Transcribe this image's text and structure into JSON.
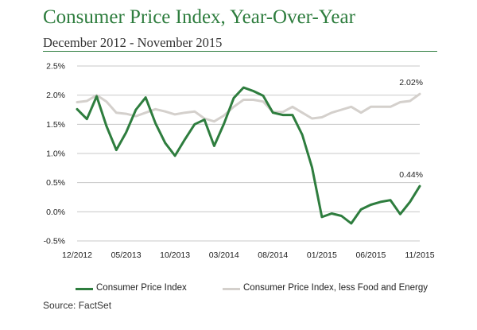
{
  "header": {
    "title": "Consumer Price Index, Year-Over-Year",
    "subtitle": "December 2012 - November 2015"
  },
  "footer": {
    "source": "Source: FactSet"
  },
  "colors": {
    "cpi": "#2e7d3e",
    "core": "#d4d0cc",
    "title": "#2e7d3e"
  },
  "chart_data": {
    "type": "line",
    "x": [
      "12/2012",
      "01/2013",
      "02/2013",
      "03/2013",
      "04/2013",
      "05/2013",
      "06/2013",
      "07/2013",
      "08/2013",
      "09/2013",
      "10/2013",
      "11/2013",
      "12/2013",
      "01/2014",
      "02/2014",
      "03/2014",
      "04/2014",
      "05/2014",
      "06/2014",
      "07/2014",
      "08/2014",
      "09/2014",
      "10/2014",
      "11/2014",
      "12/2014",
      "01/2015",
      "02/2015",
      "03/2015",
      "04/2015",
      "05/2015",
      "06/2015",
      "07/2015",
      "08/2015",
      "09/2015",
      "10/2015",
      "11/2015"
    ],
    "x_tick_labels": [
      "12/2012",
      "05/2013",
      "10/2013",
      "03/2014",
      "08/2014",
      "01/2015",
      "06/2015",
      "11/2015"
    ],
    "ylim": [
      -0.5,
      2.5
    ],
    "y_tick_labels": [
      "-0.5%",
      "0.0%",
      "0.5%",
      "1.0%",
      "1.5%",
      "2.0%",
      "2.5%"
    ],
    "grid": true,
    "legend_position": "bottom",
    "series": [
      {
        "name": "Consumer Price Index",
        "color": "#2e7d3e",
        "values": [
          1.76,
          1.59,
          1.98,
          1.47,
          1.06,
          1.36,
          1.75,
          1.96,
          1.52,
          1.18,
          0.96,
          1.24,
          1.5,
          1.58,
          1.13,
          1.51,
          1.95,
          2.13,
          2.07,
          1.99,
          1.7,
          1.66,
          1.66,
          1.32,
          0.76,
          -0.09,
          -0.03,
          -0.07,
          -0.2,
          0.04,
          0.12,
          0.17,
          0.2,
          -0.04,
          0.17,
          0.44
        ],
        "end_label": "0.44%"
      },
      {
        "name": "Consumer Price Index, less Food and Energy",
        "color": "#d4d0cc",
        "values": [
          1.88,
          1.9,
          2.0,
          1.89,
          1.7,
          1.68,
          1.64,
          1.7,
          1.76,
          1.72,
          1.67,
          1.7,
          1.72,
          1.6,
          1.55,
          1.65,
          1.8,
          1.92,
          1.92,
          1.89,
          1.71,
          1.71,
          1.8,
          1.7,
          1.6,
          1.62,
          1.7,
          1.75,
          1.8,
          1.7,
          1.8,
          1.8,
          1.8,
          1.88,
          1.9,
          2.02
        ],
        "end_label": "2.02%"
      }
    ]
  }
}
